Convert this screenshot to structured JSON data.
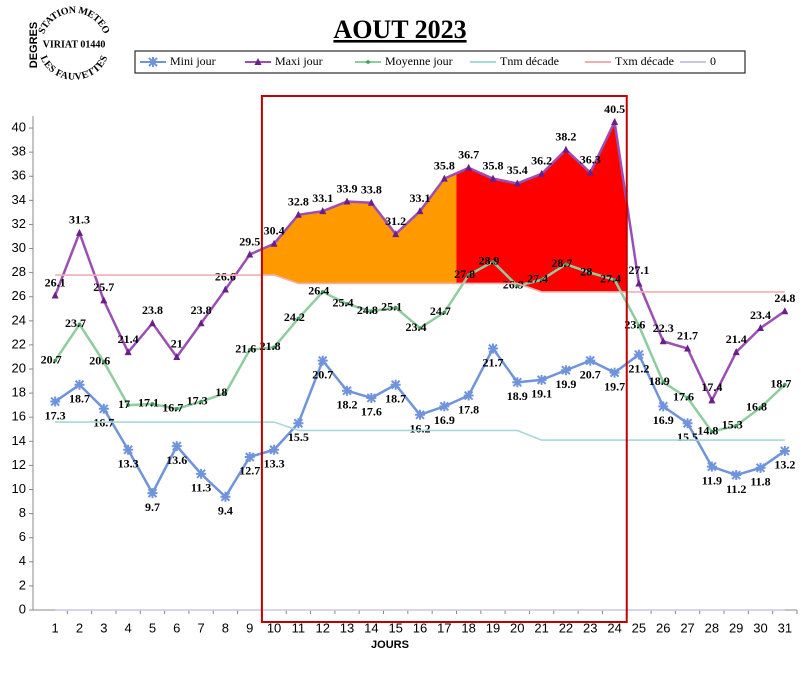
{
  "chart_data": {
    "type": "line",
    "title": "AOUT 2023",
    "y_label": "DEGRES",
    "x_label": "JOURS",
    "logo": {
      "top": "STATION METEO",
      "middle": "VIRIAT 01440",
      "bottom": "LES FAUVETTES"
    },
    "categories": [
      1,
      2,
      3,
      4,
      5,
      6,
      7,
      8,
      9,
      10,
      11,
      12,
      13,
      14,
      15,
      16,
      17,
      18,
      19,
      20,
      21,
      22,
      23,
      24,
      25,
      26,
      27,
      28,
      29,
      30,
      31
    ],
    "ylim": [
      0,
      41
    ],
    "yticks": [
      0,
      2,
      4,
      6,
      8,
      10,
      12,
      14,
      16,
      18,
      20,
      22,
      24,
      26,
      28,
      30,
      32,
      34,
      36,
      38,
      40
    ],
    "series": [
      {
        "name": "Mini jour",
        "color": "#6f94dc",
        "marker": "star",
        "labels": "below",
        "values": [
          17.3,
          18.7,
          16.7,
          13.3,
          9.7,
          13.6,
          11.3,
          9.4,
          12.7,
          13.3,
          15.5,
          20.7,
          18.2,
          17.6,
          18.7,
          16.2,
          16.9,
          17.8,
          21.7,
          18.9,
          19.1,
          19.9,
          20.7,
          19.7,
          21.2,
          16.9,
          15.5,
          11.9,
          11.2,
          11.8,
          13.2
        ]
      },
      {
        "name": "Maxi jour",
        "color": "#9b4fb5",
        "marker": "triangle",
        "labels": "above",
        "values": [
          26.1,
          31.3,
          25.7,
          21.4,
          23.8,
          21,
          23.8,
          26.6,
          29.5,
          30.4,
          32.8,
          33.1,
          33.9,
          33.8,
          31.2,
          33.1,
          35.8,
          36.7,
          35.8,
          35.4,
          36.2,
          38.2,
          36.3,
          40.5,
          27.1,
          22.3,
          21.7,
          17.4,
          21.4,
          23.4,
          24.8
        ]
      },
      {
        "name": "Moyenne jour",
        "color": "#8fcc9f",
        "marker": "dot",
        "labels": "left",
        "values": [
          20.7,
          23.7,
          20.6,
          17,
          17.1,
          16.7,
          17.3,
          18,
          21.6,
          21.8,
          24.2,
          26.4,
          25.4,
          24.8,
          25.1,
          23.4,
          24.7,
          27.8,
          28.9,
          26.9,
          27.4,
          28.7,
          28,
          27.4,
          23.6,
          18.9,
          17.6,
          14.8,
          15.3,
          16.8,
          18.7
        ]
      },
      {
        "name": "Tnm décade",
        "color": "#a8d8d8",
        "values": [
          15.6,
          15.6,
          15.6,
          15.6,
          15.6,
          15.6,
          15.6,
          15.6,
          15.6,
          15.6,
          14.9,
          14.9,
          14.9,
          14.9,
          14.9,
          14.9,
          14.9,
          14.9,
          14.9,
          14.9,
          14.1,
          14.1,
          14.1,
          14.1,
          14.1,
          14.1,
          14.1,
          14.1,
          14.1,
          14.1,
          14.1
        ]
      },
      {
        "name": "Txm décade",
        "color": "#f0b0b0",
        "values": [
          27.8,
          27.8,
          27.8,
          27.8,
          27.8,
          27.8,
          27.8,
          27.8,
          27.8,
          27.8,
          27.1,
          27.1,
          27.1,
          27.1,
          27.1,
          27.1,
          27.1,
          27.1,
          27.1,
          27.1,
          26.4,
          26.4,
          26.4,
          26.4,
          26.4,
          26.4,
          26.4,
          26.4,
          26.4,
          26.4,
          26.4
        ]
      },
      {
        "name": "0",
        "color": "#c8c8e0",
        "values": [
          0,
          0,
          0,
          0,
          0,
          0,
          0,
          0,
          0,
          0,
          0,
          0,
          0,
          0,
          0,
          0,
          0,
          0,
          0,
          0,
          0,
          0,
          0,
          0,
          0,
          0,
          0,
          0,
          0,
          0,
          0
        ]
      }
    ],
    "fill_bands": [
      {
        "x": [
          9.5,
          17.5
        ],
        "color": "#ff9900"
      },
      {
        "x": [
          17.5,
          24.5
        ],
        "color": "#ff0000"
      }
    ],
    "highlight_box": {
      "x": [
        9.5,
        24.5
      ],
      "color": "#c00000"
    }
  }
}
